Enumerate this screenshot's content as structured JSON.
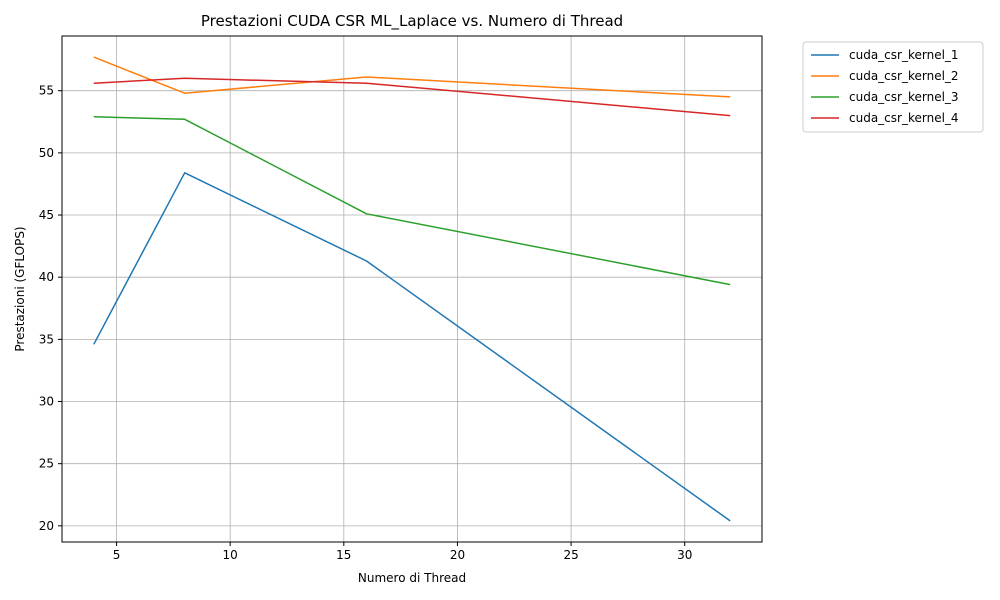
{
  "chart_data": {
    "type": "line",
    "title": "Prestazioni CUDA CSR ML_Laplace vs. Numero di Thread",
    "xlabel": "Numero di Thread",
    "ylabel": "Prestazioni (GFLOPS)",
    "x": [
      4,
      8,
      16,
      32
    ],
    "xlim": [
      2.6,
      33.4
    ],
    "ylim": [
      18.7,
      59.4
    ],
    "xticks": [
      5,
      10,
      15,
      20,
      25,
      30
    ],
    "yticks": [
      20,
      25,
      30,
      35,
      40,
      45,
      50,
      55
    ],
    "grid": true,
    "legend_position": "outside-top-right",
    "series": [
      {
        "name": "cuda_csr_kernel_1",
        "color": "#1f77b4",
        "values": [
          34.6,
          48.4,
          41.3,
          20.4
        ]
      },
      {
        "name": "cuda_csr_kernel_2",
        "color": "#ff7f0e",
        "values": [
          57.7,
          54.8,
          56.1,
          54.5
        ]
      },
      {
        "name": "cuda_csr_kernel_3",
        "color": "#2ca02c",
        "values": [
          52.9,
          52.7,
          45.1,
          39.4
        ]
      },
      {
        "name": "cuda_csr_kernel_4",
        "color": "#d62728",
        "values": [
          55.6,
          56.0,
          55.6,
          53.0
        ]
      }
    ]
  }
}
